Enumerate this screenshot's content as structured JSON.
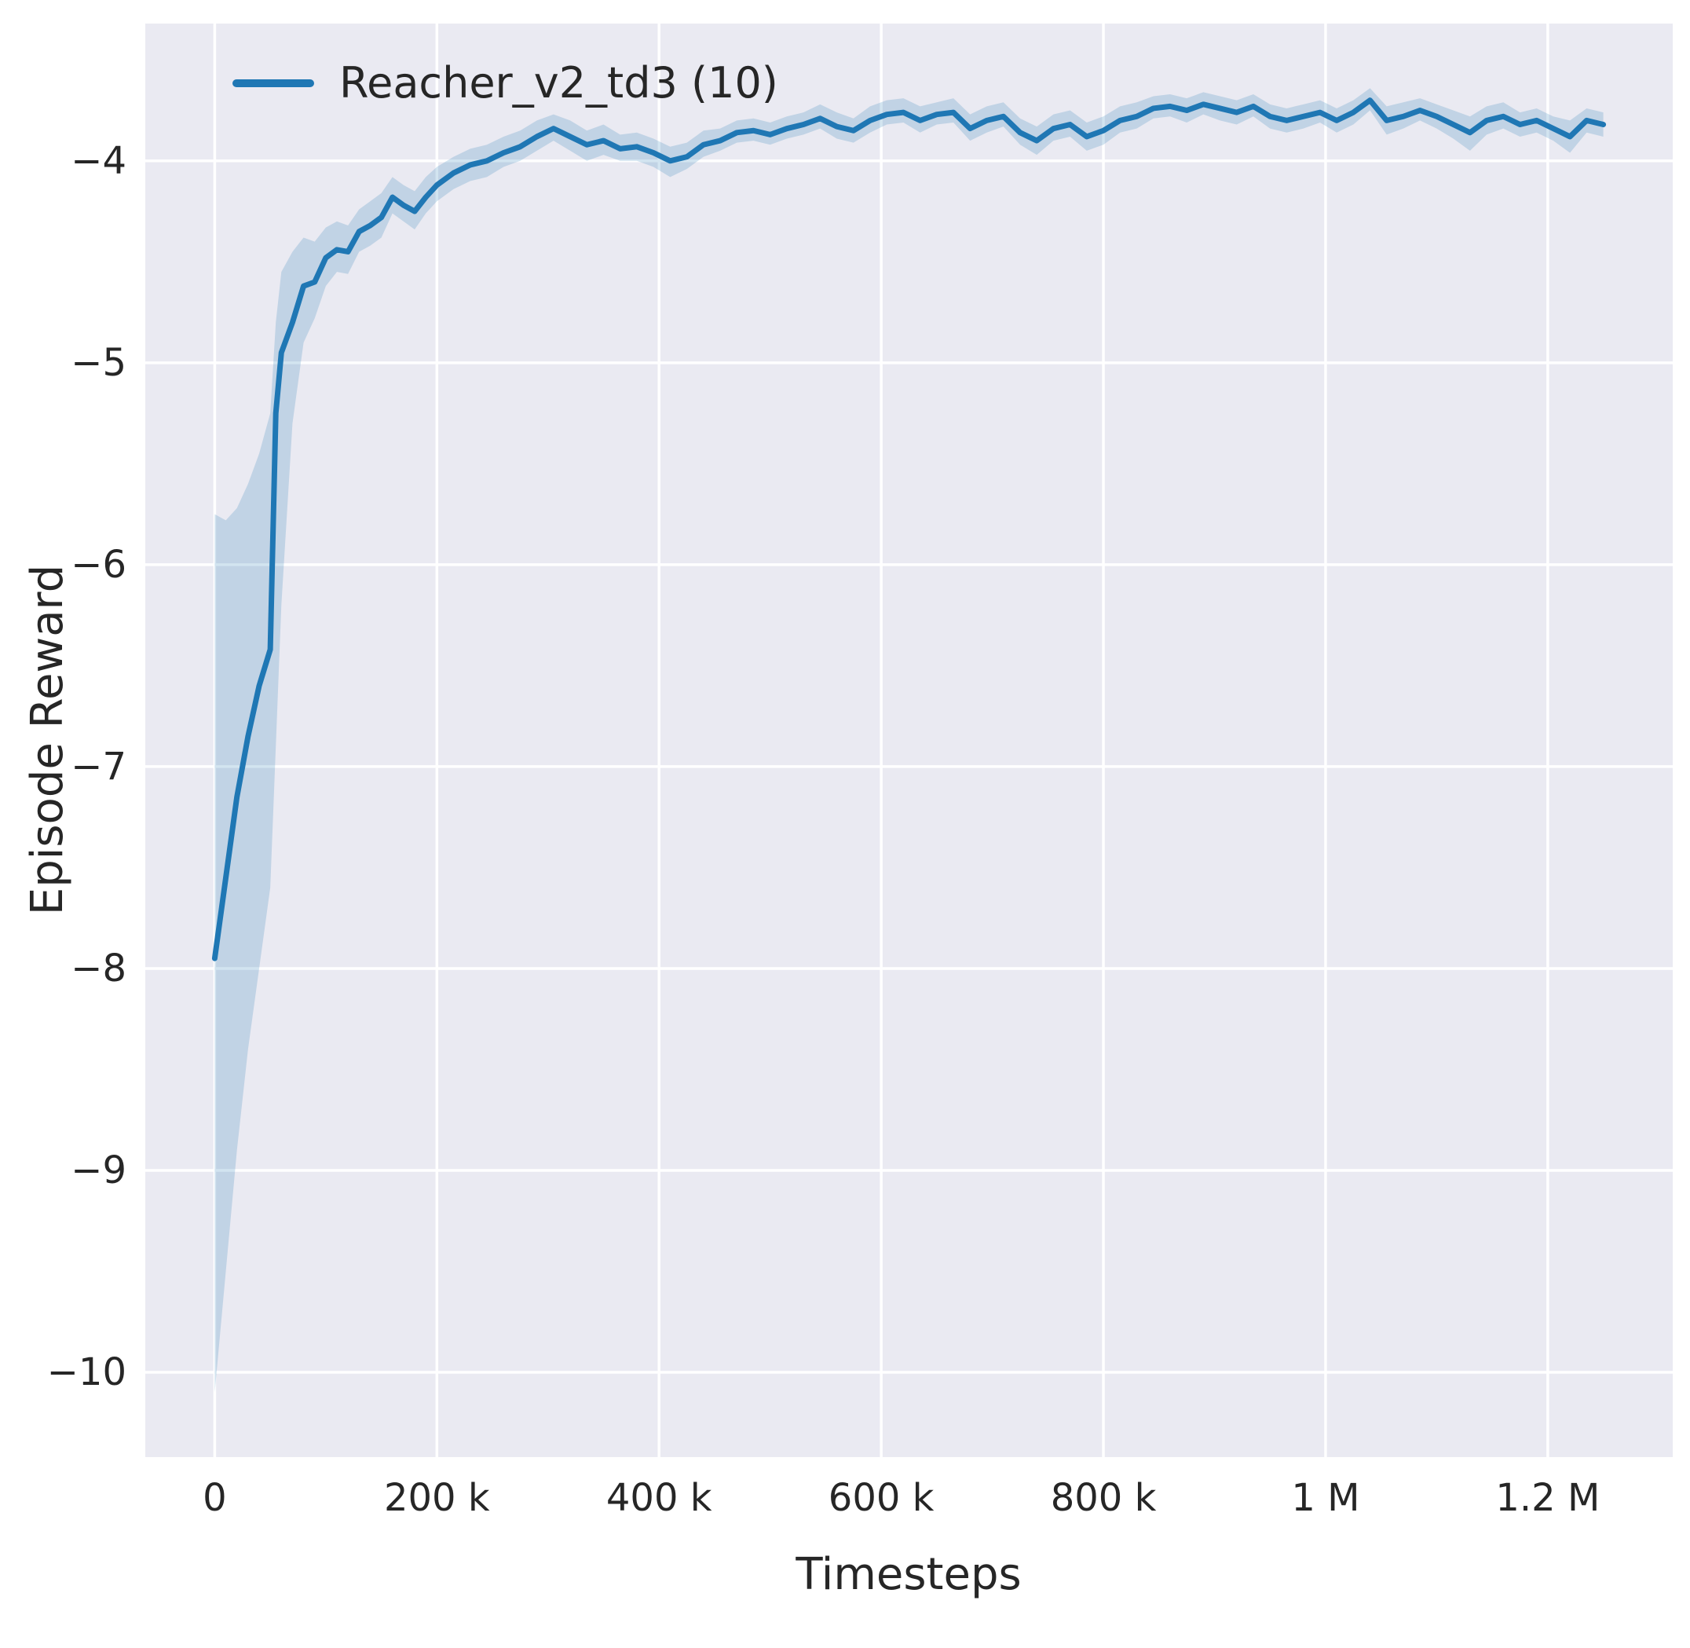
{
  "chart_data": {
    "type": "line",
    "title": "",
    "xlabel": "Timesteps",
    "ylabel": "Episode Reward",
    "grid": true,
    "legend_position": "upper left",
    "legend": [
      {
        "label": "Reacher_v2_td3 (10)",
        "color": "#1f77b4"
      }
    ],
    "colors": {
      "axes_background": "#eaeaf2",
      "grid": "#ffffff",
      "line": "#1f77b4",
      "band": "#1f77b4",
      "band_opacity": 0.2,
      "text": "#262626"
    },
    "xlim": [
      -62500,
      1312500
    ],
    "ylim": [
      -10.42,
      -3.32
    ],
    "xticks": [
      {
        "value": 0,
        "label": "0"
      },
      {
        "value": 200000,
        "label": "200 k"
      },
      {
        "value": 400000,
        "label": "400 k"
      },
      {
        "value": 600000,
        "label": "600 k"
      },
      {
        "value": 800000,
        "label": "800 k"
      },
      {
        "value": 1000000,
        "label": "1 M"
      },
      {
        "value": 1200000,
        "label": "1.2 M"
      }
    ],
    "yticks": [
      {
        "value": -4,
        "label": "−4"
      },
      {
        "value": -5,
        "label": "−5"
      },
      {
        "value": -6,
        "label": "−6"
      },
      {
        "value": -7,
        "label": "−7"
      },
      {
        "value": -8,
        "label": "−8"
      },
      {
        "value": -9,
        "label": "−9"
      },
      {
        "value": -10,
        "label": "−10"
      }
    ],
    "series": [
      {
        "name": "Reacher_v2_td3 (10)",
        "color": "#1f77b4",
        "x": [
          0,
          10000,
          20000,
          30000,
          40000,
          50000,
          55000,
          60000,
          70000,
          80000,
          90000,
          100000,
          110000,
          120000,
          130000,
          140000,
          150000,
          160000,
          170000,
          180000,
          190000,
          200000,
          215000,
          230000,
          245000,
          260000,
          275000,
          290000,
          305000,
          320000,
          335000,
          350000,
          365000,
          380000,
          395000,
          410000,
          425000,
          440000,
          455000,
          470000,
          485000,
          500000,
          515000,
          530000,
          545000,
          560000,
          575000,
          590000,
          605000,
          620000,
          635000,
          650000,
          665000,
          680000,
          695000,
          710000,
          725000,
          740000,
          755000,
          770000,
          785000,
          800000,
          815000,
          830000,
          845000,
          860000,
          875000,
          890000,
          905000,
          920000,
          935000,
          950000,
          965000,
          980000,
          995000,
          1010000,
          1025000,
          1040000,
          1055000,
          1070000,
          1085000,
          1100000,
          1115000,
          1130000,
          1145000,
          1160000,
          1175000,
          1190000,
          1205000,
          1220000,
          1235000,
          1250000
        ],
        "mean": [
          -7.95,
          -7.55,
          -7.15,
          -6.85,
          -6.6,
          -6.42,
          -5.25,
          -4.95,
          -4.8,
          -4.62,
          -4.6,
          -4.48,
          -4.44,
          -4.45,
          -4.35,
          -4.32,
          -4.28,
          -4.18,
          -4.22,
          -4.25,
          -4.18,
          -4.12,
          -4.06,
          -4.02,
          -4.0,
          -3.96,
          -3.93,
          -3.88,
          -3.84,
          -3.88,
          -3.92,
          -3.9,
          -3.94,
          -3.93,
          -3.96,
          -4.0,
          -3.98,
          -3.92,
          -3.9,
          -3.86,
          -3.85,
          -3.87,
          -3.84,
          -3.82,
          -3.79,
          -3.83,
          -3.85,
          -3.8,
          -3.77,
          -3.76,
          -3.8,
          -3.77,
          -3.76,
          -3.84,
          -3.8,
          -3.78,
          -3.86,
          -3.9,
          -3.84,
          -3.82,
          -3.88,
          -3.85,
          -3.8,
          -3.78,
          -3.74,
          -3.73,
          -3.75,
          -3.72,
          -3.74,
          -3.76,
          -3.73,
          -3.78,
          -3.8,
          -3.78,
          -3.76,
          -3.8,
          -3.76,
          -3.7,
          -3.8,
          -3.78,
          -3.75,
          -3.78,
          -3.82,
          -3.86,
          -3.8,
          -3.78,
          -3.82,
          -3.8,
          -3.84,
          -3.88,
          -3.8,
          -3.82
        ],
        "lower": [
          -10.1,
          -9.5,
          -8.9,
          -8.4,
          -8.0,
          -7.6,
          -6.9,
          -6.2,
          -5.3,
          -4.9,
          -4.78,
          -4.62,
          -4.55,
          -4.56,
          -4.45,
          -4.42,
          -4.38,
          -4.26,
          -4.3,
          -4.34,
          -4.26,
          -4.2,
          -4.14,
          -4.1,
          -4.08,
          -4.03,
          -4.0,
          -3.95,
          -3.9,
          -3.95,
          -4.0,
          -3.97,
          -4.0,
          -4.0,
          -4.03,
          -4.08,
          -4.04,
          -3.98,
          -3.95,
          -3.91,
          -3.9,
          -3.92,
          -3.89,
          -3.87,
          -3.84,
          -3.89,
          -3.91,
          -3.86,
          -3.82,
          -3.81,
          -3.86,
          -3.82,
          -3.81,
          -3.9,
          -3.86,
          -3.83,
          -3.92,
          -3.97,
          -3.9,
          -3.88,
          -3.95,
          -3.92,
          -3.86,
          -3.84,
          -3.79,
          -3.78,
          -3.81,
          -3.77,
          -3.8,
          -3.82,
          -3.78,
          -3.84,
          -3.86,
          -3.84,
          -3.81,
          -3.86,
          -3.82,
          -3.75,
          -3.87,
          -3.84,
          -3.8,
          -3.84,
          -3.89,
          -3.95,
          -3.87,
          -3.84,
          -3.88,
          -3.86,
          -3.9,
          -3.96,
          -3.86,
          -3.88
        ],
        "upper": [
          -5.75,
          -5.78,
          -5.72,
          -5.6,
          -5.45,
          -5.25,
          -4.8,
          -4.55,
          -4.45,
          -4.38,
          -4.4,
          -4.33,
          -4.3,
          -4.32,
          -4.24,
          -4.2,
          -4.16,
          -4.08,
          -4.12,
          -4.15,
          -4.08,
          -4.03,
          -3.98,
          -3.94,
          -3.92,
          -3.88,
          -3.85,
          -3.8,
          -3.77,
          -3.8,
          -3.85,
          -3.82,
          -3.87,
          -3.86,
          -3.89,
          -3.93,
          -3.91,
          -3.85,
          -3.84,
          -3.8,
          -3.79,
          -3.81,
          -3.78,
          -3.76,
          -3.72,
          -3.76,
          -3.79,
          -3.73,
          -3.7,
          -3.69,
          -3.73,
          -3.71,
          -3.69,
          -3.77,
          -3.73,
          -3.71,
          -3.79,
          -3.83,
          -3.77,
          -3.75,
          -3.81,
          -3.78,
          -3.73,
          -3.71,
          -3.68,
          -3.67,
          -3.69,
          -3.66,
          -3.68,
          -3.7,
          -3.67,
          -3.72,
          -3.74,
          -3.72,
          -3.7,
          -3.74,
          -3.7,
          -3.64,
          -3.73,
          -3.71,
          -3.69,
          -3.72,
          -3.75,
          -3.78,
          -3.73,
          -3.71,
          -3.76,
          -3.74,
          -3.78,
          -3.8,
          -3.74,
          -3.76
        ]
      }
    ]
  }
}
